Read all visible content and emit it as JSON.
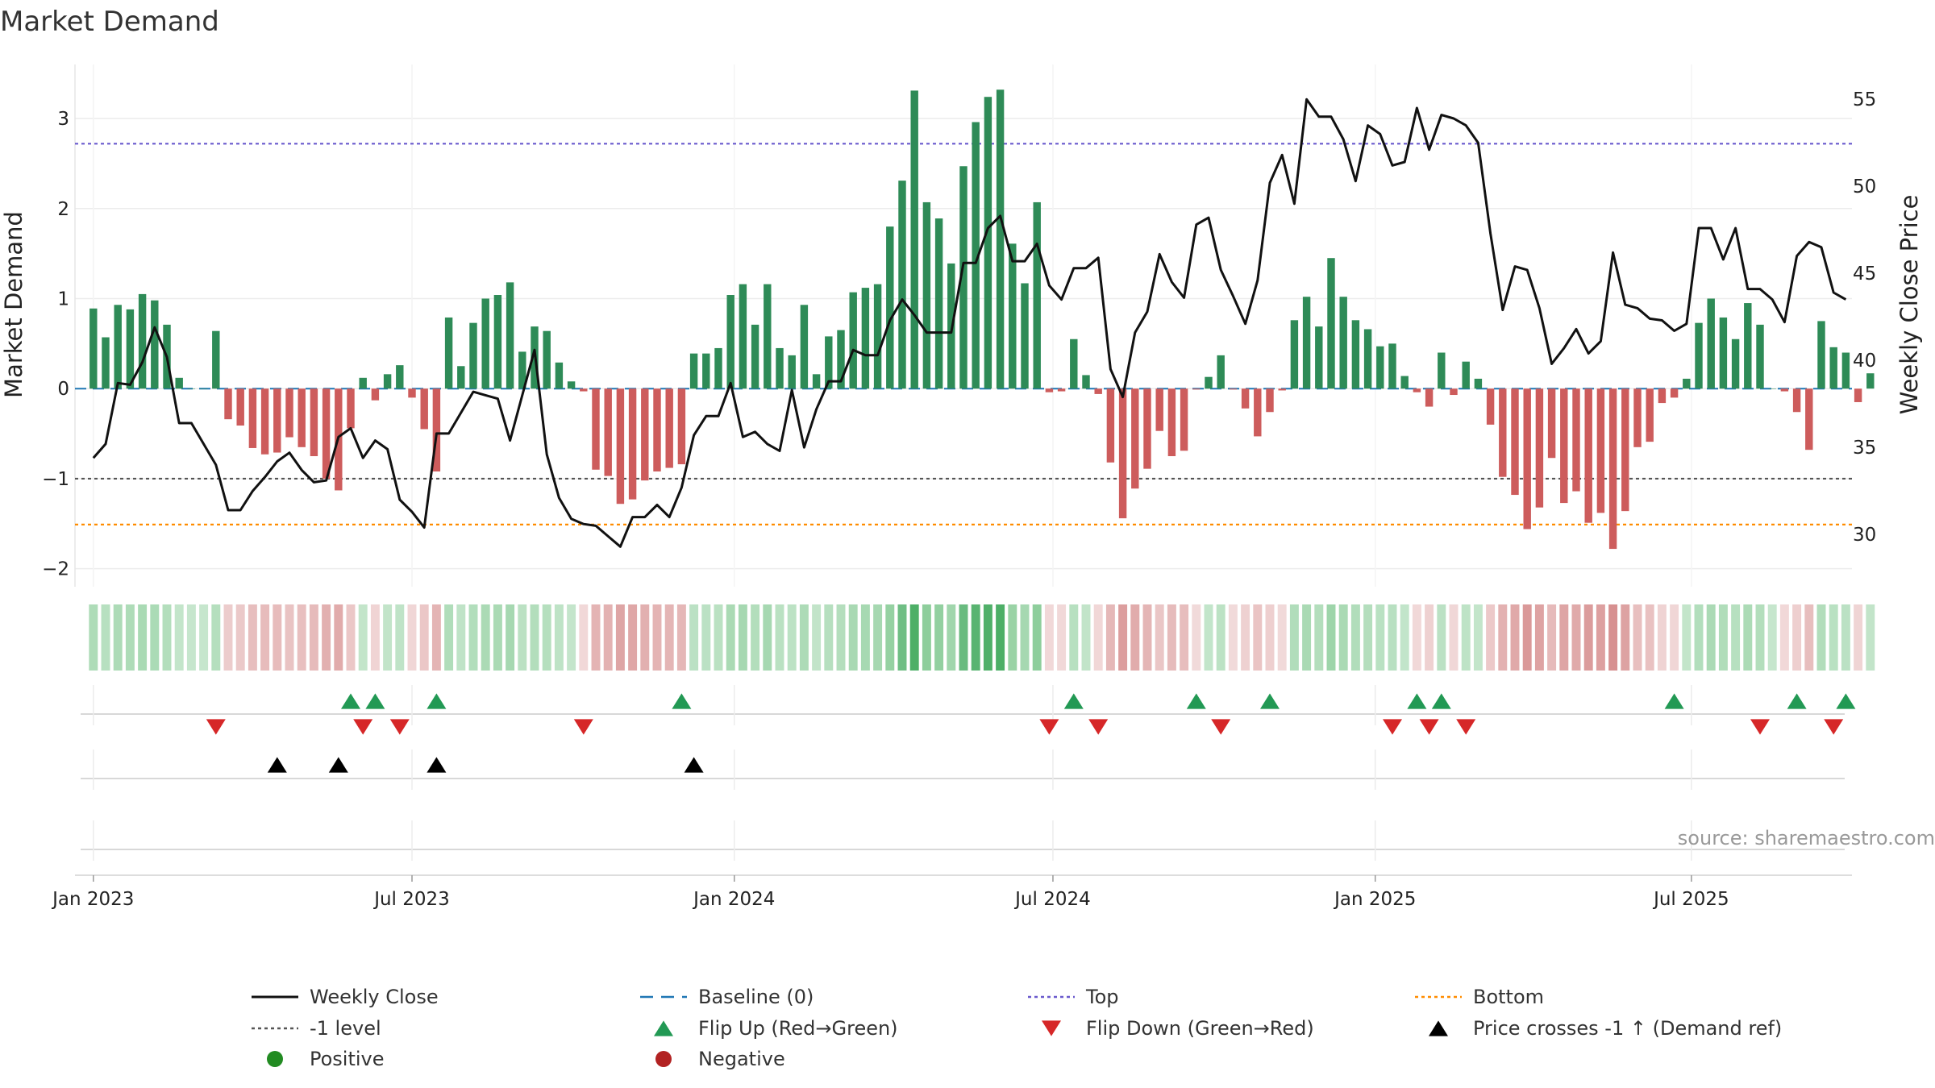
{
  "chart_data": {
    "type": "bar",
    "title": "Market Demand",
    "ylabel_left": "Market Demand",
    "ylabel_right": "Weekly Close Price",
    "ylim_left": [
      -2.2,
      3.6
    ],
    "ylim_right": [
      27,
      57
    ],
    "yticks_left": [
      -2,
      -1,
      0,
      1,
      2,
      3
    ],
    "yticks_left_labels": [
      "−2",
      "−1",
      "0",
      "1",
      "2",
      "3"
    ],
    "yticks_right": [
      30,
      35,
      40,
      45,
      50,
      55
    ],
    "yticks_right_labels": [
      "30",
      "35",
      "40",
      "45",
      "50",
      "55"
    ],
    "x_range_weeks": [
      -1.5,
      143.5
    ],
    "x_ticks": [
      {
        "label": "Jan 2023",
        "week": 0
      },
      {
        "label": "Jul 2023",
        "week": 26
      },
      {
        "label": "Jan 2024",
        "week": 52.3
      },
      {
        "label": "Jul 2024",
        "week": 78.3
      },
      {
        "label": "Jan 2025",
        "week": 104.6
      },
      {
        "label": "Jul 2025",
        "week": 130.4
      }
    ],
    "reference_lines": {
      "top": 2.72,
      "minus_one": -1,
      "bottom": -1.51,
      "baseline": 0
    },
    "demand": [
      0.89,
      0.57,
      0.93,
      0.88,
      1.05,
      0.98,
      0.71,
      0.12,
      0,
      0,
      0.64,
      -0.34,
      -0.41,
      -0.66,
      -0.73,
      -0.71,
      -0.54,
      -0.65,
      -0.75,
      -1.0,
      -1.13,
      -0.44,
      0.12,
      -0.13,
      0.16,
      0.26,
      -0.1,
      -0.45,
      -0.92,
      0.79,
      0.25,
      0.73,
      1.0,
      1.04,
      1.18,
      0.41,
      0.69,
      0.64,
      0.29,
      0.08,
      -0.03,
      -0.9,
      -0.97,
      -1.28,
      -1.23,
      -1.02,
      -0.92,
      -0.88,
      -0.84,
      0.39,
      0.39,
      0.45,
      1.04,
      1.16,
      0.71,
      1.16,
      0.45,
      0.37,
      0.93,
      0.16,
      0.58,
      0.65,
      1.07,
      1.12,
      1.16,
      1.8,
      2.31,
      3.31,
      2.07,
      1.89,
      1.39,
      2.47,
      2.96,
      3.24,
      3.32,
      1.61,
      1.17,
      2.07,
      -0.04,
      -0.03,
      0.55,
      0.15,
      -0.06,
      -0.82,
      -1.44,
      -1.11,
      -0.89,
      -0.47,
      -0.75,
      -0.69,
      -0.01,
      0.13,
      0.37,
      -0.01,
      -0.22,
      -0.53,
      -0.26,
      -0.02,
      0.76,
      1.02,
      0.69,
      1.45,
      1.02,
      0.76,
      0.66,
      0.47,
      0.5,
      0.14,
      -0.04,
      -0.2,
      0.4,
      -0.07,
      0.3,
      0.11,
      -0.4,
      -0.98,
      -1.18,
      -1.56,
      -1.32,
      -0.77,
      -1.27,
      -1.14,
      -1.49,
      -1.38,
      -1.78,
      -1.36,
      -0.65,
      -0.59,
      -0.16,
      -0.1,
      0.11,
      0.73,
      1.0,
      0.79,
      0.55,
      0.95,
      0.71,
      0,
      -0.03,
      -0.26,
      -0.68,
      0.75,
      0.46,
      0.4,
      -0.15,
      0.17
    ],
    "weekly_close": [
      34.4,
      35.2,
      38.7,
      38.6,
      39.9,
      41.9,
      40.2,
      36.4,
      36.4,
      35.2,
      34,
      31.4,
      31.4,
      32.5,
      33.3,
      34.2,
      34.7,
      33.7,
      33.0,
      33.1,
      35.6,
      36.1,
      34.4,
      35.4,
      34.9,
      32.0,
      31.3,
      30.4,
      35.8,
      35.8,
      37.0,
      38.2,
      38.0,
      37.8,
      35.4,
      38.0,
      40.6,
      34.6,
      32.1,
      30.9,
      30.6,
      30.5,
      29.9,
      29.3,
      31.0,
      31.0,
      31.7,
      31.0,
      32.7,
      35.7,
      36.8,
      36.8,
      38.7,
      35.6,
      35.9,
      35.2,
      34.8,
      38.3,
      35.0,
      37.2,
      38.8,
      38.8,
      40.6,
      40.3,
      40.3,
      42.3,
      43.5,
      42.6,
      41.6,
      41.6,
      41.6,
      45.6,
      45.6,
      47.6,
      48.3,
      45.7,
      45.7,
      46.7,
      44.3,
      43.5,
      45.3,
      45.3,
      45.9,
      39.5,
      37.9,
      41.6,
      42.8,
      46.1,
      44.5,
      43.6,
      47.8,
      48.2,
      45.2,
      43.7,
      42.1,
      44.6,
      50.2,
      51.8,
      49.0,
      55.0,
      54.0,
      54.0,
      52.7,
      50.3,
      53.5,
      53.0,
      51.2,
      51.4,
      54.5,
      52.1,
      54.1,
      53.9,
      53.5,
      52.5,
      47.3,
      42.9,
      45.4,
      45.2,
      43.0,
      39.8,
      40.7,
      41.8,
      40.4,
      41.1,
      46.2,
      43.2,
      43.0,
      42.4,
      42.3,
      41.7,
      42.1,
      47.6,
      47.6,
      45.8,
      47.6,
      44.1,
      44.1,
      43.5,
      42.2,
      46.0,
      46.8,
      46.5,
      43.9,
      43.5
    ],
    "flip_up_weeks": [
      21,
      23,
      28,
      48,
      80,
      90,
      96,
      108,
      110,
      129,
      139,
      143
    ],
    "flip_down_weeks": [
      10,
      22,
      25,
      40,
      78,
      82,
      92,
      106,
      109,
      112,
      136,
      142
    ],
    "price_cross_weeks": [
      15,
      20,
      28,
      49
    ],
    "legend": {
      "weekly_close": "Weekly Close",
      "baseline": "Baseline (0)",
      "top": "Top",
      "bottom": "Bottom",
      "minus_one": "-1 level",
      "flip_up": "Flip Up (Red→Green)",
      "flip_down": "Flip Down (Green→Red)",
      "price_cross": "Price crosses -1 ↑ (Demand ref)",
      "positive": "Positive",
      "negative": "Negative"
    },
    "colors": {
      "positive_bar": "#2e8b57",
      "negative_bar": "#cd5c5c",
      "close_line": "#111111",
      "baseline": "#1f77b4",
      "top": "#6a5acd",
      "minus_one": "#555555",
      "bottom": "#ff8c00",
      "flip_up": "#229954",
      "flip_down": "#d62728",
      "price_cross": "#000000",
      "positive_dot": "#228b22",
      "negative_dot": "#b22222"
    }
  },
  "source": "source: sharemaestro.com"
}
